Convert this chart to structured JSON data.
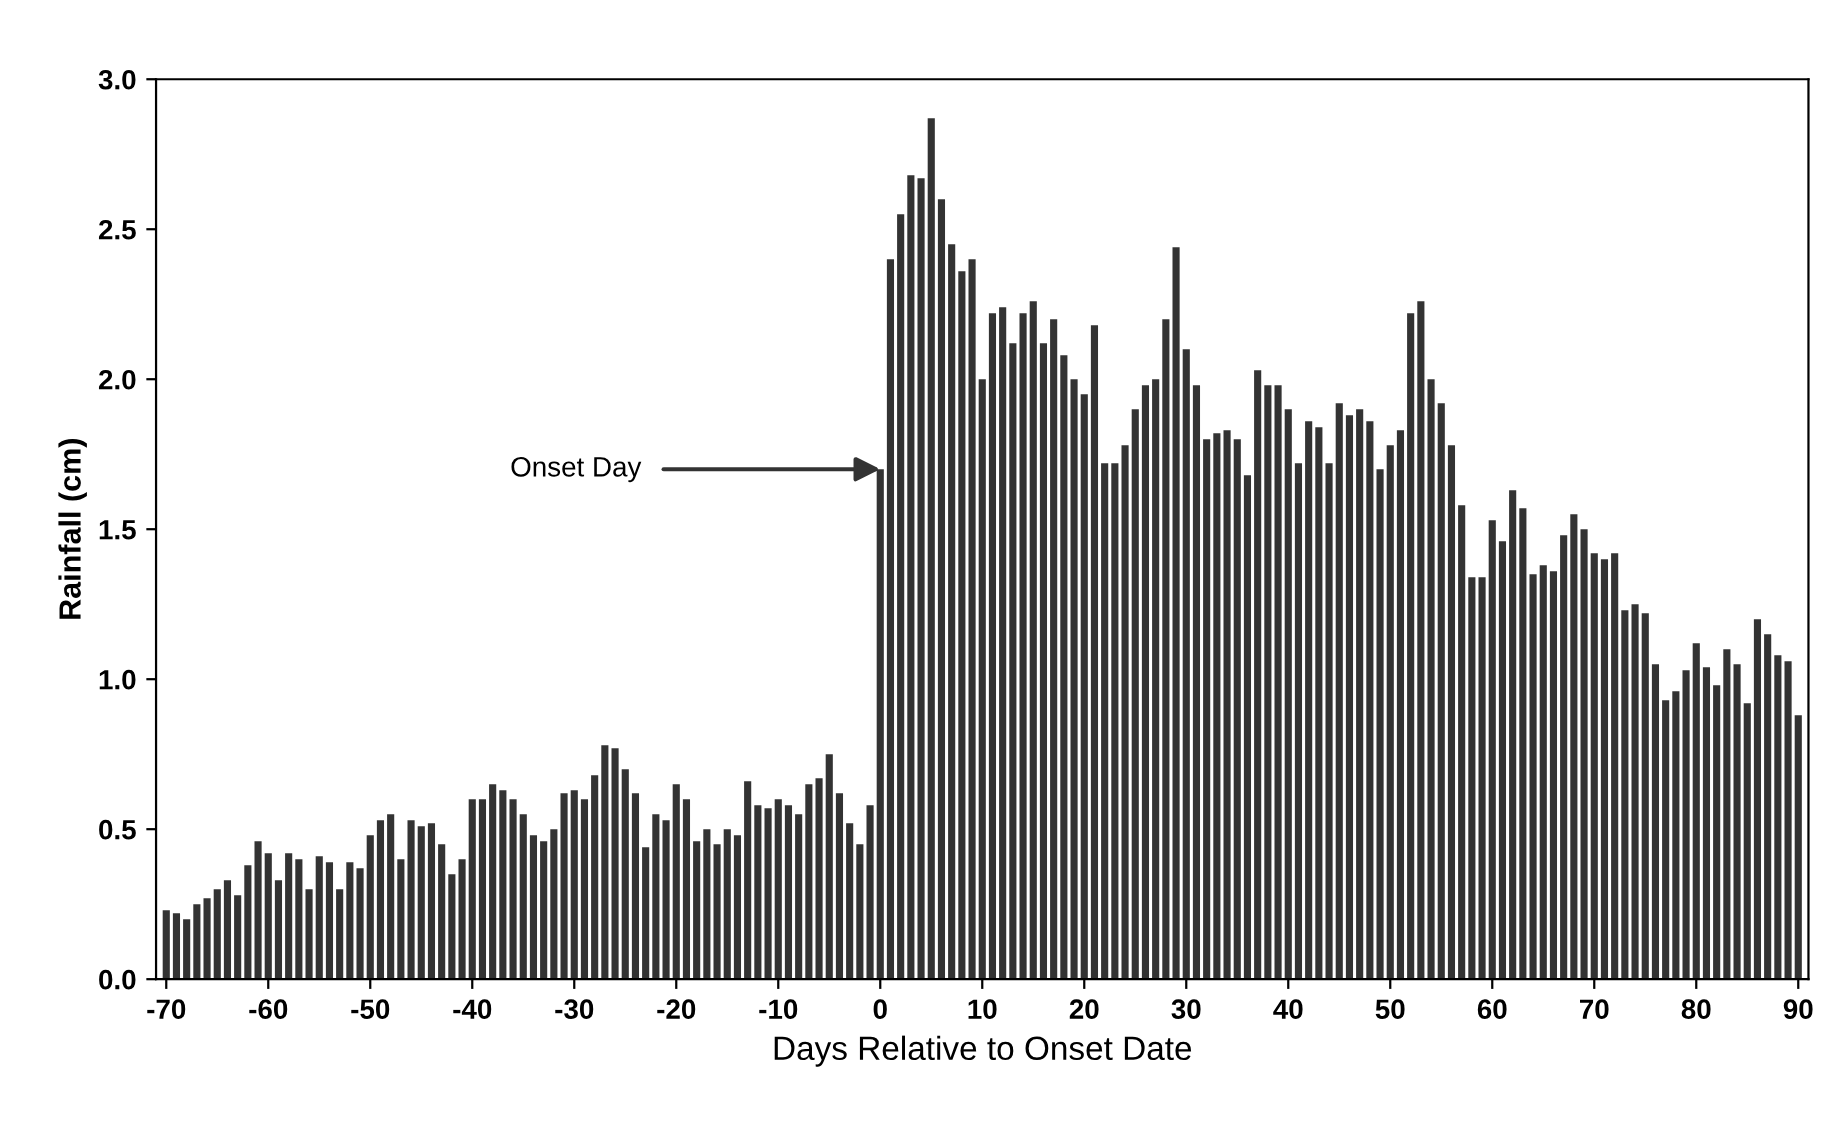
{
  "chart_data": {
    "type": "bar",
    "xlabel": "Days Relative to Onset Date",
    "ylabel": "Rainfall (cm)",
    "x": [
      -70,
      -69,
      -68,
      -67,
      -66,
      -65,
      -64,
      -63,
      -62,
      -61,
      -60,
      -59,
      -58,
      -57,
      -56,
      -55,
      -54,
      -53,
      -52,
      -51,
      -50,
      -49,
      -48,
      -47,
      -46,
      -45,
      -44,
      -43,
      -42,
      -41,
      -40,
      -39,
      -38,
      -37,
      -36,
      -35,
      -34,
      -33,
      -32,
      -31,
      -30,
      -29,
      -28,
      -27,
      -26,
      -25,
      -24,
      -23,
      -22,
      -21,
      -20,
      -19,
      -18,
      -17,
      -16,
      -15,
      -14,
      -13,
      -12,
      -11,
      -10,
      -9,
      -8,
      -7,
      -6,
      -5,
      -4,
      -3,
      -2,
      -1,
      0,
      1,
      2,
      3,
      4,
      5,
      6,
      7,
      8,
      9,
      10,
      11,
      12,
      13,
      14,
      15,
      16,
      17,
      18,
      19,
      20,
      21,
      22,
      23,
      24,
      25,
      26,
      27,
      28,
      29,
      30,
      31,
      32,
      33,
      34,
      35,
      36,
      37,
      38,
      39,
      40,
      41,
      42,
      43,
      44,
      45,
      46,
      47,
      48,
      49,
      50,
      51,
      52,
      53,
      54,
      55,
      56,
      57,
      58,
      59,
      60,
      61,
      62,
      63,
      64,
      65,
      66,
      67,
      68,
      69,
      70,
      71,
      72,
      73,
      74,
      75,
      76,
      77,
      78,
      79,
      80,
      81,
      82,
      83,
      84,
      85,
      86,
      87,
      88,
      89,
      90
    ],
    "values": [
      0.23,
      0.22,
      0.2,
      0.25,
      0.27,
      0.3,
      0.33,
      0.28,
      0.38,
      0.46,
      0.42,
      0.33,
      0.42,
      0.4,
      0.3,
      0.41,
      0.39,
      0.3,
      0.39,
      0.37,
      0.48,
      0.53,
      0.55,
      0.4,
      0.53,
      0.51,
      0.52,
      0.45,
      0.35,
      0.4,
      0.6,
      0.6,
      0.65,
      0.63,
      0.6,
      0.55,
      0.48,
      0.46,
      0.5,
      0.62,
      0.63,
      0.6,
      0.68,
      0.78,
      0.77,
      0.7,
      0.62,
      0.44,
      0.55,
      0.53,
      0.65,
      0.6,
      0.46,
      0.5,
      0.45,
      0.5,
      0.48,
      0.66,
      0.58,
      0.57,
      0.6,
      0.58,
      0.55,
      0.65,
      0.67,
      0.75,
      0.62,
      0.52,
      0.45,
      0.58,
      1.7,
      2.4,
      2.55,
      2.68,
      2.67,
      2.87,
      2.6,
      2.45,
      2.36,
      2.4,
      2.0,
      2.22,
      2.24,
      2.12,
      2.22,
      2.26,
      2.12,
      2.2,
      2.08,
      2.0,
      1.95,
      2.18,
      1.72,
      1.72,
      1.78,
      1.9,
      1.98,
      2.0,
      2.2,
      2.44,
      2.1,
      1.98,
      1.8,
      1.82,
      1.83,
      1.8,
      1.68,
      2.03,
      1.98,
      1.98,
      1.9,
      1.72,
      1.86,
      1.84,
      1.72,
      1.92,
      1.88,
      1.9,
      1.86,
      1.7,
      1.78,
      1.83,
      2.22,
      2.26,
      2.0,
      1.92,
      1.78,
      1.58,
      1.34,
      1.34,
      1.53,
      1.46,
      1.63,
      1.57,
      1.35,
      1.38,
      1.36,
      1.48,
      1.55,
      1.5,
      1.42,
      1.4,
      1.42,
      1.23,
      1.25,
      1.22,
      1.05,
      0.93,
      0.96,
      1.03,
      1.12,
      1.04,
      0.98,
      1.1,
      1.05,
      0.92,
      1.2,
      1.15,
      1.08,
      1.06,
      0.88
    ],
    "color": "#333333",
    "xlim": [
      -71,
      91
    ],
    "xticks": [
      -70,
      -60,
      -50,
      -40,
      -30,
      -20,
      -10,
      0,
      10,
      20,
      30,
      40,
      50,
      60,
      70,
      80,
      90
    ],
    "ylim": [
      0,
      3.0
    ],
    "yticks": [
      {
        "value": 0,
        "label": "0.0"
      },
      {
        "value": 0.5,
        "label": "0.5"
      },
      {
        "value": 1.0,
        "label": "1.0"
      },
      {
        "value": 1.5,
        "label": "1.5"
      },
      {
        "value": 2.0,
        "label": "2.0"
      },
      {
        "value": 2.5,
        "label": "2.5"
      },
      {
        "value": 3.0,
        "label": "3.0"
      }
    ],
    "grid": false,
    "annotations": [
      {
        "text": "Onset Day",
        "x": 0,
        "y": 1.7
      }
    ]
  }
}
